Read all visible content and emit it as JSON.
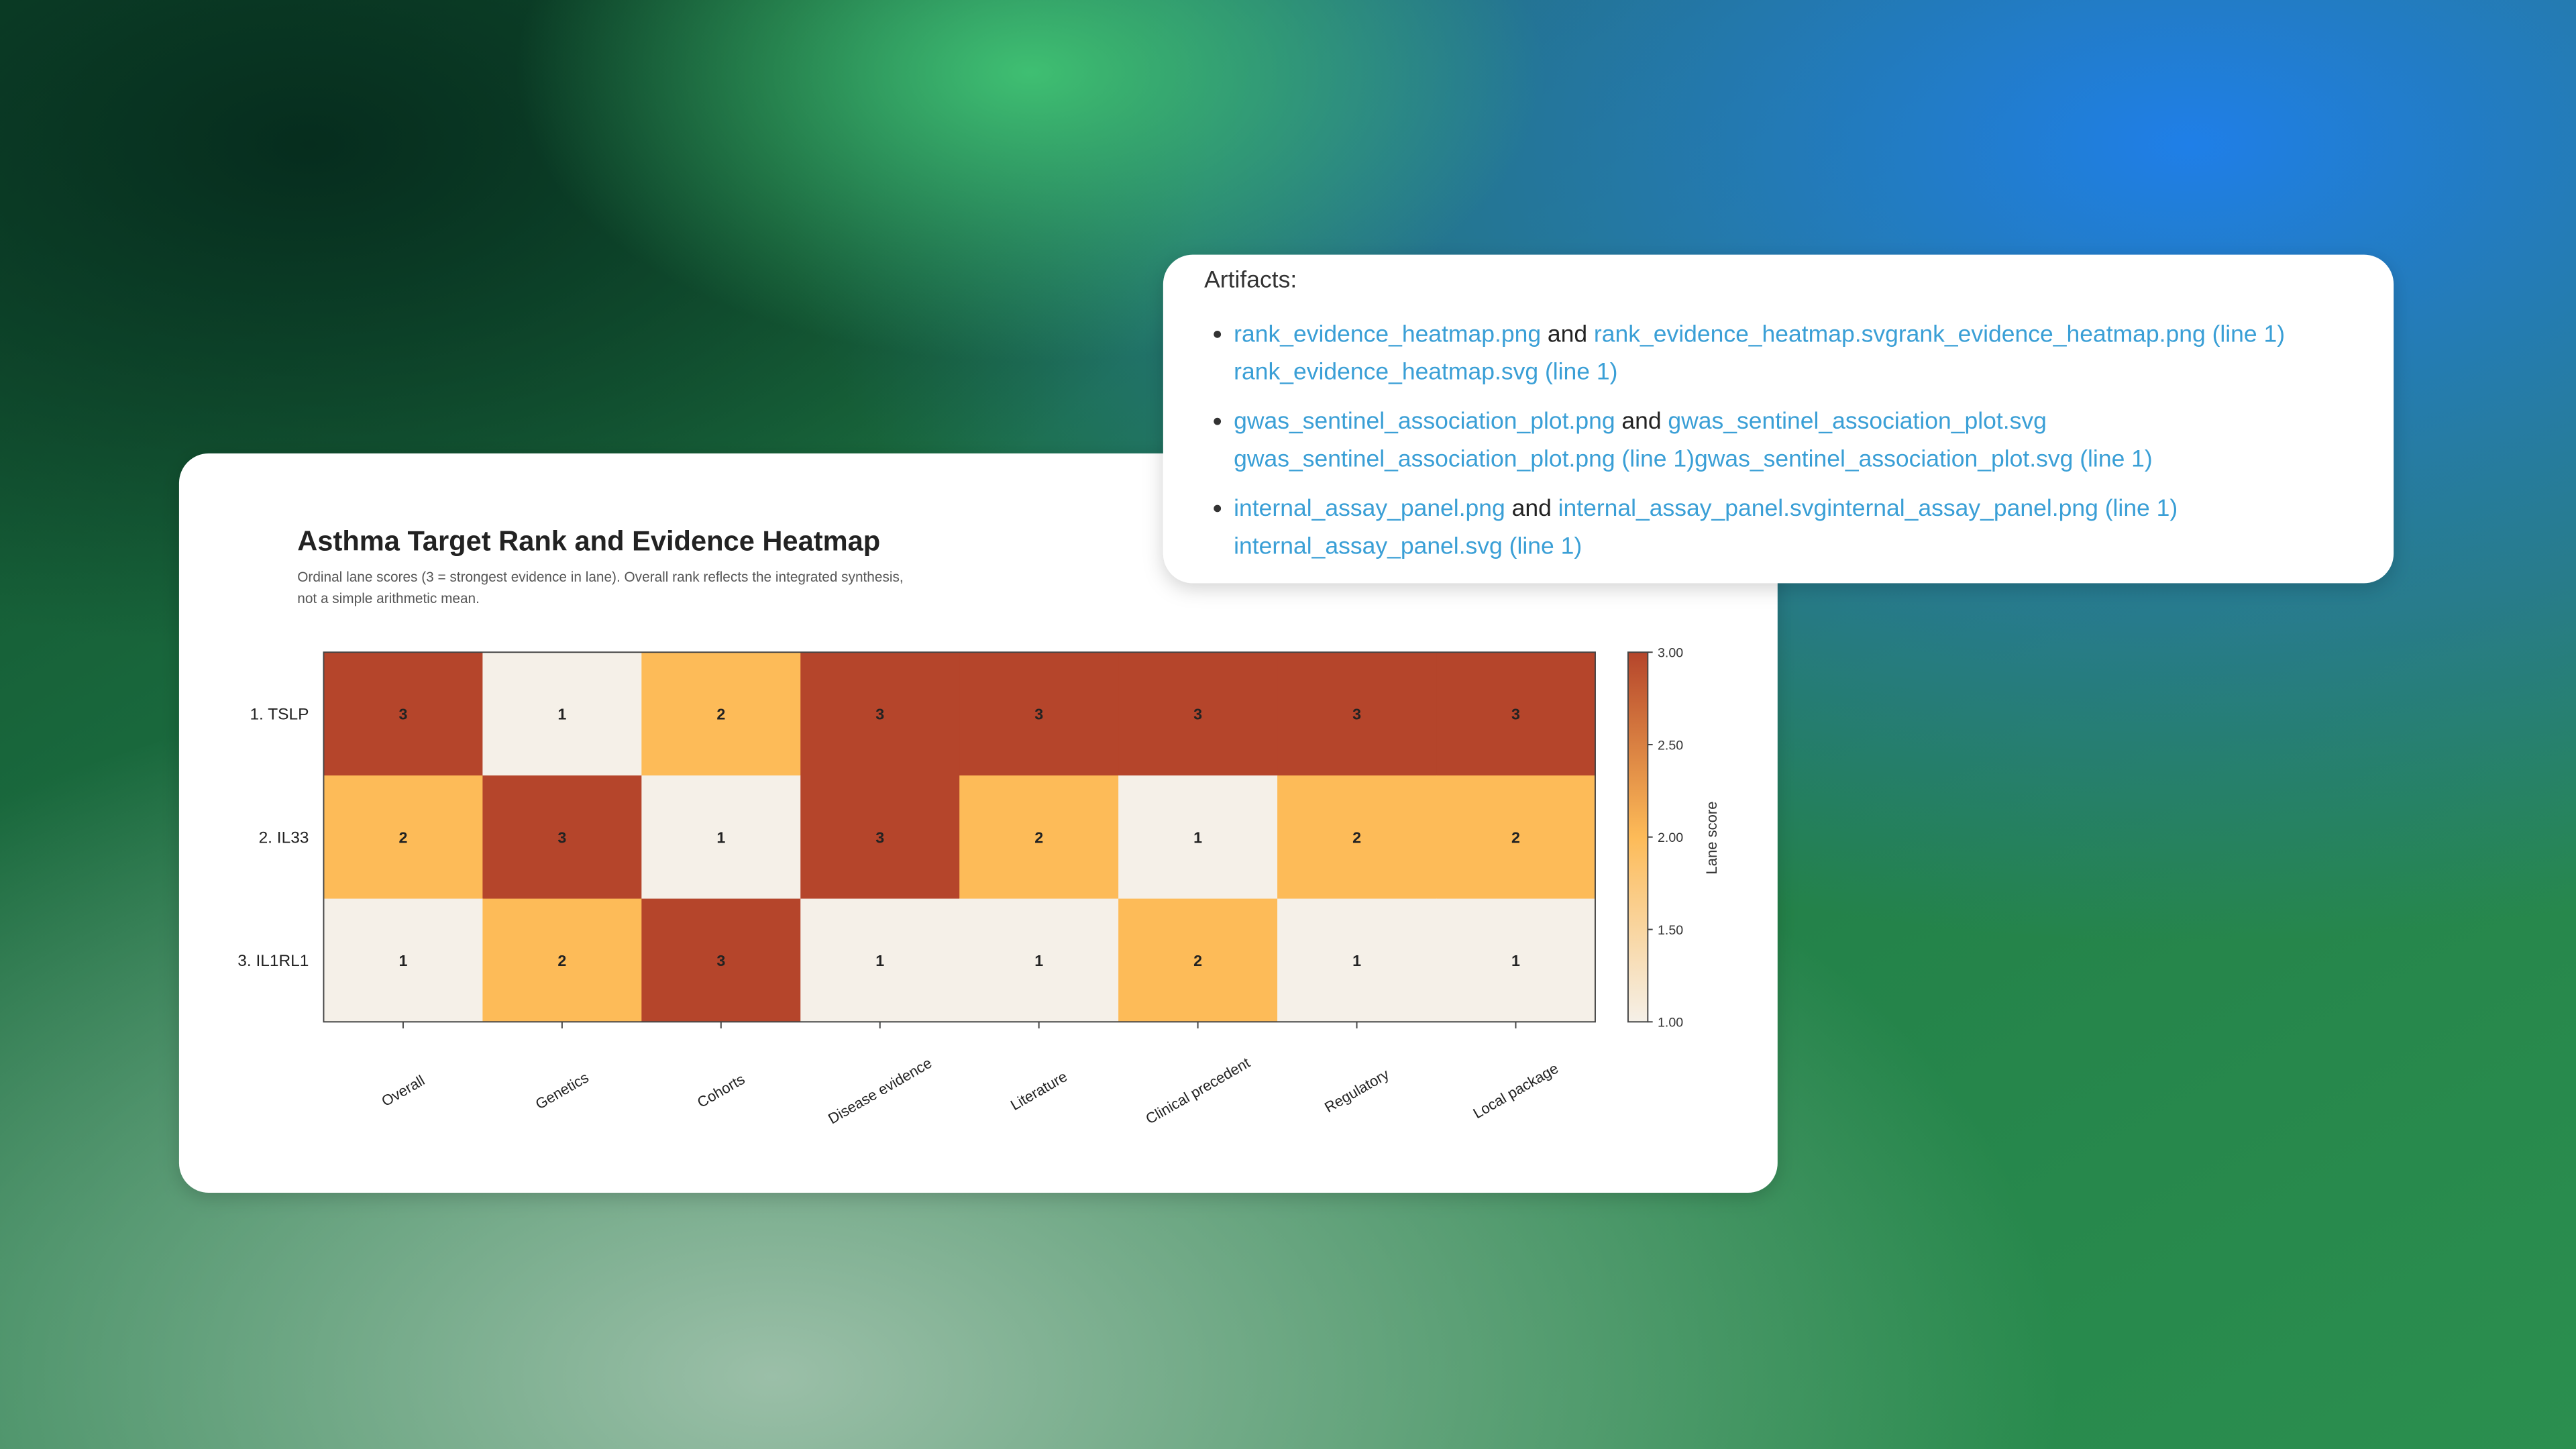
{
  "chart_data": {
    "type": "heatmap",
    "title": "Asthma Target Rank and Evidence Heatmap",
    "subtitle": [
      "Ordinal lane scores (3 = strongest evidence in lane). Overall rank reflects the integrated synthesis,",
      "not a simple arithmetic mean."
    ],
    "rows": [
      "1. TSLP",
      "2. IL33",
      "3. IL1RL1"
    ],
    "columns": [
      "Overall",
      "Genetics",
      "Cohorts",
      "Disease evidence",
      "Literature",
      "Clinical precedent",
      "Regulatory",
      "Local package"
    ],
    "values": [
      [
        3,
        1,
        2,
        3,
        3,
        3,
        3,
        3
      ],
      [
        2,
        3,
        1,
        3,
        2,
        1,
        2,
        2
      ],
      [
        1,
        2,
        3,
        1,
        1,
        2,
        1,
        1
      ]
    ],
    "colormap": [
      "#f5f0e8",
      "#fdbb58",
      "#b5452b"
    ],
    "clim": [
      1,
      3
    ],
    "cticks": [
      {
        "value": 1,
        "label": "1.00"
      },
      {
        "value": 1.5,
        "label": "1.50"
      },
      {
        "value": 2,
        "label": "2.00"
      },
      {
        "value": 2.5,
        "label": "2.50"
      },
      {
        "value": 3,
        "label": "3.00"
      }
    ],
    "colorbar_label": "Lane score"
  },
  "artifacts": {
    "title": "Artifacts:",
    "items": [
      {
        "lines": [
          [
            {
              "text": "rank_evidence_heatmap.png",
              "link": true
            },
            {
              "text": "and",
              "link": false
            },
            {
              "text": "rank_evidence_heatmap.svg",
              "link": true
            },
            {
              "text": "rank_evidence_heatmap.png (line 1)",
              "link": true
            }
          ],
          [
            {
              "text": "rank_evidence_heatmap.svg (line 1)",
              "link": true
            }
          ]
        ]
      },
      {
        "lines": [
          [
            {
              "text": "gwas_sentinel_association_plot.png",
              "link": true
            },
            {
              "text": "and",
              "link": false
            },
            {
              "text": "gwas_sentinel_association_plot.svg",
              "link": true
            }
          ],
          [
            {
              "text": "gwas_sentinel_association_plot.png (line 1)",
              "link": true
            },
            {
              "text": "gwas_sentinel_association_plot.svg (line 1)",
              "link": true
            }
          ]
        ]
      },
      {
        "lines": [
          [
            {
              "text": "internal_assay_panel.png",
              "link": true
            },
            {
              "text": "and",
              "link": false
            },
            {
              "text": "internal_assay_panel.svg",
              "link": true
            },
            {
              "text": "internal_assay_panel.png (line 1)",
              "link": true
            }
          ],
          [
            {
              "text": "internal_assay_panel.svg (line 1)",
              "link": true
            }
          ]
        ]
      }
    ]
  }
}
